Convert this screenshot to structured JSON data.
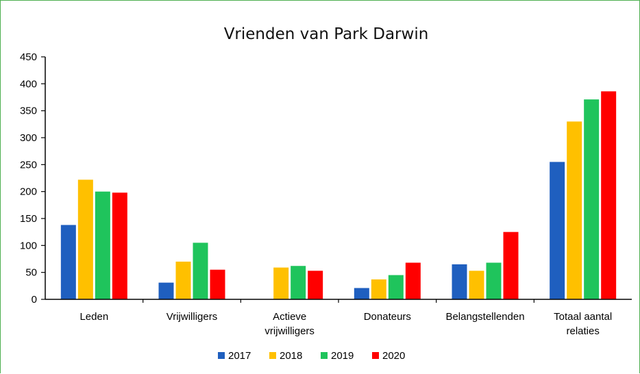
{
  "chart_data": {
    "type": "bar",
    "title": "Vrienden van Park Darwin",
    "xlabel": "",
    "ylabel": "",
    "ylim": [
      0,
      450
    ],
    "yticks": [
      "0",
      "50",
      "100",
      "150",
      "200",
      "250",
      "300",
      "350",
      "400",
      "450"
    ],
    "grid": false,
    "legend_position": "bottom",
    "categories": [
      [
        "Leden"
      ],
      [
        "Vrijwilligers"
      ],
      [
        "Actieve",
        "vrijwilligers"
      ],
      [
        "Donateurs"
      ],
      [
        "Belangstellenden"
      ],
      [
        "Totaal aantal",
        "relaties"
      ]
    ],
    "series": [
      {
        "name": "2017",
        "color": "#1f5fbf",
        "values": [
          138,
          31,
          0,
          21,
          65,
          255
        ]
      },
      {
        "name": "2018",
        "color": "#ffc000",
        "values": [
          222,
          70,
          59,
          37,
          53,
          330
        ]
      },
      {
        "name": "2019",
        "color": "#1fc45c",
        "values": [
          200,
          105,
          62,
          45,
          68,
          371
        ]
      },
      {
        "name": "2020",
        "color": "#ff0000",
        "values": [
          198,
          55,
          53,
          68,
          125,
          386
        ]
      }
    ]
  }
}
